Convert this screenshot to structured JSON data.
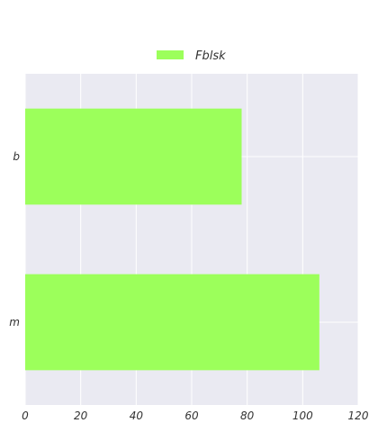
{
  "chart_data": {
    "type": "bar",
    "orientation": "horizontal",
    "title": "",
    "xlabel": "",
    "ylabel": "",
    "categories": [
      "b",
      "m"
    ],
    "series": [
      {
        "name": "Fblsk",
        "values": [
          78,
          106
        ],
        "color": "#9cff5b"
      }
    ],
    "xlim": [
      0,
      120
    ],
    "xticks": [
      0,
      20,
      40,
      60,
      80,
      100,
      120
    ],
    "grid": true,
    "legend_position": "top-center",
    "background_color": "#eaeaf2"
  }
}
